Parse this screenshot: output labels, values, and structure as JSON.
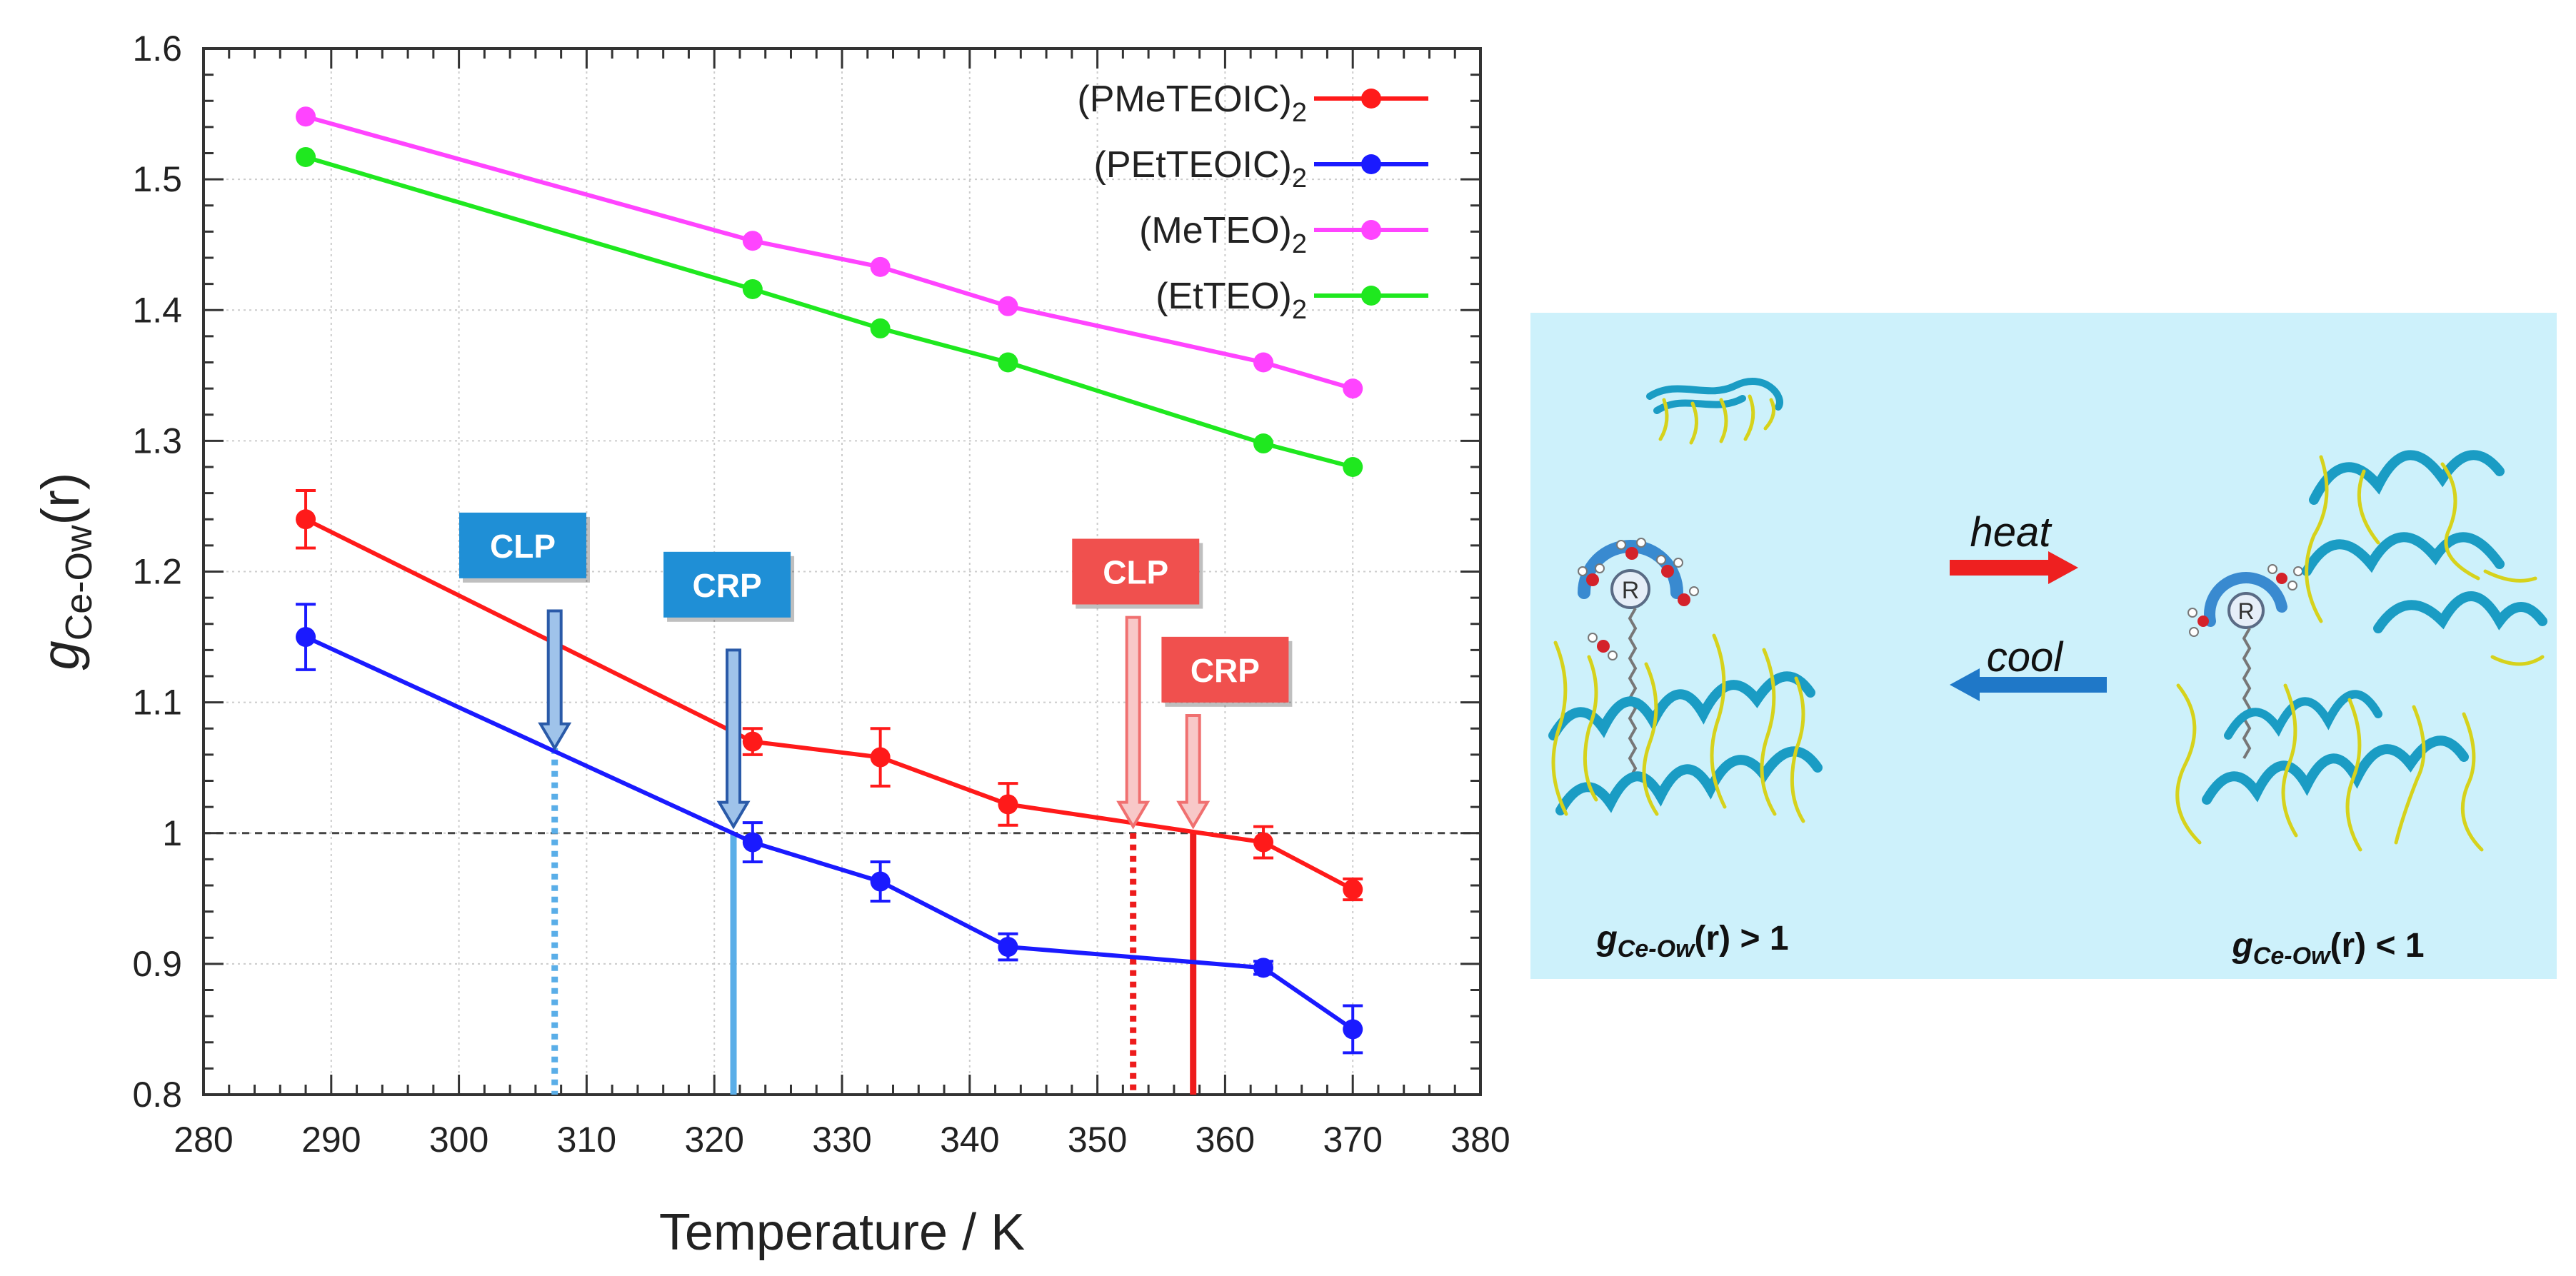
{
  "chart_data": {
    "type": "line",
    "xlabel": "Temperature / K",
    "ylabel": {
      "g": "g",
      "sub": "Ce-Ow",
      "suffix": "(r)"
    },
    "xlim": [
      280,
      380
    ],
    "ylim": [
      0.8,
      1.6
    ],
    "x_ticks": [
      280,
      290,
      300,
      310,
      320,
      330,
      340,
      350,
      360,
      370,
      380
    ],
    "y_ticks": [
      {
        "value": 0.8,
        "label": "0.8"
      },
      {
        "value": 0.9,
        "label": "0.9"
      },
      {
        "value": 1.0,
        "label": "1"
      },
      {
        "value": 1.1,
        "label": "1.1"
      },
      {
        "value": 1.2,
        "label": "1.2"
      },
      {
        "value": 1.3,
        "label": "1.3"
      },
      {
        "value": 1.4,
        "label": "1.4"
      },
      {
        "value": 1.5,
        "label": "1.5"
      },
      {
        "value": 1.6,
        "label": "1.6"
      }
    ],
    "reference_line": 1.0,
    "legend_position": "top-right",
    "series": [
      {
        "name": "(PMeTEOIC)",
        "sub": "2",
        "color": "#ff1a1a",
        "x": [
          288,
          323,
          333,
          343,
          363,
          370
        ],
        "y": [
          1.24,
          1.07,
          1.058,
          1.022,
          0.993,
          0.957
        ],
        "err": [
          0.022,
          0.01,
          0.022,
          0.016,
          0.012,
          0.008
        ]
      },
      {
        "name": "(PEtTEOIC)",
        "sub": "2",
        "color": "#1a1aff",
        "x": [
          288,
          323,
          333,
          343,
          363,
          370
        ],
        "y": [
          1.15,
          0.993,
          0.963,
          0.913,
          0.897,
          0.85
        ],
        "err": [
          0.025,
          0.015,
          0.015,
          0.01,
          0.005,
          0.018
        ]
      },
      {
        "name": "(MeTEO)",
        "sub": "2",
        "color": "#ff44ff",
        "x": [
          288,
          323,
          333,
          343,
          363,
          370
        ],
        "y": [
          1.548,
          1.453,
          1.433,
          1.403,
          1.36,
          1.34
        ],
        "err": []
      },
      {
        "name": "(EtTEO)",
        "sub": "2",
        "color": "#1fe81f",
        "x": [
          288,
          323,
          333,
          343,
          363,
          370
        ],
        "y": [
          1.517,
          1.416,
          1.386,
          1.36,
          1.298,
          1.28
        ],
        "err": []
      }
    ],
    "transitions": [
      {
        "label": "CLP",
        "temp": 307.5,
        "color": "blue",
        "line": "dotted",
        "box_color": "#1f8fd6",
        "box_x": 305,
        "box_y": 1.22,
        "arrow_top": 1.17,
        "arrow_bottom": 1.065,
        "drop_top": 1.065
      },
      {
        "label": "CRP",
        "temp": 321.5,
        "color": "blue",
        "line": "solid",
        "box_color": "#1f8fd6",
        "box_x": 321,
        "box_y": 1.19,
        "arrow_top": 1.14,
        "arrow_bottom": 1.005,
        "drop_top": 1.0
      },
      {
        "label": "CLP",
        "temp": 352.8,
        "color": "red",
        "line": "dotted",
        "box_color": "#f0504e",
        "box_x": 353,
        "box_y": 1.2,
        "arrow_top": 1.165,
        "arrow_bottom": 1.005,
        "drop_top": 1.0
      },
      {
        "label": "CRP",
        "temp": 357.5,
        "color": "red",
        "line": "solid",
        "box_color": "#f0504e",
        "box_x": 360,
        "box_y": 1.125,
        "arrow_top": 1.09,
        "arrow_bottom": 1.005,
        "drop_top": 1.0
      }
    ]
  },
  "illustration": {
    "heat_label": "heat",
    "cool_label": "cool",
    "left_caption": {
      "g": "g",
      "sub": "Ce-Ow",
      "rest": "(r) > 1"
    },
    "right_caption": {
      "g": "g",
      "sub": "Ce-Ow",
      "rest": "(r) < 1"
    },
    "core_label": "R",
    "colors": {
      "panel_bg": "#cdf1fb",
      "polymer": "#1a9cc4",
      "sidechain": "#d6d21c",
      "heat": "#ee2020",
      "cool": "#1f78c8"
    }
  }
}
